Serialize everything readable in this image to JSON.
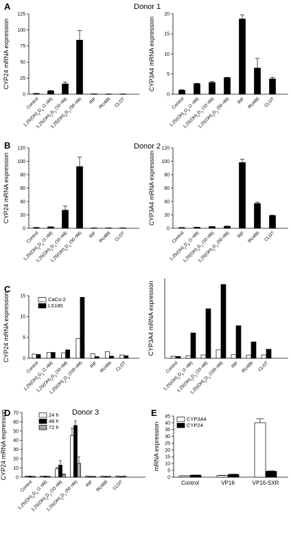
{
  "figure": {
    "panel_labels": [
      "A",
      "B",
      "C",
      "D",
      "E"
    ],
    "donor_labels": [
      "Donor 1",
      "Donor 2",
      "Donor 3"
    ]
  },
  "colors": {
    "black": "#000000",
    "white": "#ffffff",
    "gray": "#a6a6a6"
  },
  "chart_data": [
    {
      "id": "A-left",
      "type": "bar",
      "panel": "A",
      "categories": [
        "Control",
        "1,25(OH)2D3 (1 nM)",
        "1,25(OH)2D3 (10 nM)",
        "1,25(OH)2D3 (50 nM)",
        "RIF",
        "RU486",
        "CLOT"
      ],
      "series": [
        {
          "values": [
            1,
            5,
            16,
            84,
            0.5,
            0.3,
            0.3
          ],
          "errors": [
            0.3,
            0.8,
            3,
            15,
            0.1,
            0.1,
            0.1
          ],
          "color": "black"
        }
      ],
      "ylabel": "CYP24 mRNA expression",
      "ylim": [
        0,
        125
      ],
      "yticks": [
        0,
        25,
        50,
        75,
        100,
        125
      ]
    },
    {
      "id": "A-right",
      "type": "bar",
      "panel": "A",
      "categories": [
        "Control",
        "1,25(OH)2D3 (1 nM)",
        "1,25(OH)2D3 (10 nM)",
        "1,25(OH)2D3 (50 nM)",
        "RIF",
        "RU486",
        "CLOT"
      ],
      "series": [
        {
          "values": [
            1,
            2.6,
            2.9,
            4.1,
            18.7,
            6.5,
            3.8
          ],
          "errors": [
            0.1,
            0.1,
            0.3,
            0.1,
            1.0,
            2.4,
            0.4
          ],
          "color": "black"
        }
      ],
      "ylabel": "CYP3A4 mRNA expression",
      "ylim": [
        0,
        20
      ],
      "yticks": [
        0,
        5,
        10,
        15,
        20
      ]
    },
    {
      "id": "B-left",
      "type": "bar",
      "panel": "B",
      "categories": [
        "Control",
        "1,25(OH)2D3 (1 nM)",
        "1,25(OH)2D3 (10 nM)",
        "1,25(OH)2D3 (50 nM)",
        "RIF",
        "RU486",
        "CLOT"
      ],
      "series": [
        {
          "values": [
            1,
            2,
            27,
            92,
            0.5,
            0.5,
            0.5
          ],
          "errors": [
            0.3,
            0.3,
            6,
            14,
            0.1,
            0.1,
            0.1
          ],
          "color": "black"
        }
      ],
      "ylabel": "CYP24 mRNA expression",
      "ylim": [
        0,
        120
      ],
      "yticks": [
        0,
        20,
        40,
        60,
        80,
        100,
        120
      ]
    },
    {
      "id": "B-right",
      "type": "bar",
      "panel": "B",
      "categories": [
        "Control",
        "1,25(OH)2D3 (1 nM)",
        "1,25(OH)2D3 (10 nM)",
        "1,25(OH)2D3 (50 nM)",
        "RIF",
        "RU486",
        "CLOT"
      ],
      "series": [
        {
          "values": [
            1,
            1.5,
            2.5,
            3,
            98,
            37,
            19
          ],
          "errors": [
            0.2,
            0.2,
            0.3,
            0.3,
            5,
            2,
            0.5
          ],
          "color": "black"
        }
      ],
      "ylabel": "CYP3A4 mRNA expression",
      "ylim": [
        0,
        120
      ],
      "yticks": [
        0,
        20,
        40,
        60,
        80,
        100,
        120
      ]
    },
    {
      "id": "C-left",
      "type": "bar",
      "panel": "C",
      "categories": [
        "Control",
        "1,25(OH)2D3 (1 nM)",
        "1,25(OH)2D3 (10 nM)",
        "1,25(OH)2D3 (100 nM)",
        "RIF",
        "RU486",
        "CLOT"
      ],
      "series": [
        {
          "name": "CaCo-2",
          "values": [
            1,
            1.4,
            1.3,
            4.7,
            1.1,
            1.6,
            0.8
          ],
          "color": "white"
        },
        {
          "name": "LS180",
          "values": [
            0.9,
            1.4,
            2,
            14.6,
            0.4,
            0.5,
            0.6
          ],
          "color": "black"
        }
      ],
      "ylabel": "CYP24 mRNA expression",
      "ylim": [
        0,
        15
      ],
      "yticks": [
        0,
        5,
        10,
        15
      ],
      "legend": "top-left"
    },
    {
      "id": "C-right",
      "type": "bar",
      "panel": "C",
      "categories": [
        "Control",
        "1,25(OH)2D3 (1 nM)",
        "1,25(OH)2D3 (10 nM)",
        "1,25(OH)2D3 (100 nM)",
        "RIF",
        "RU486",
        "CLOT"
      ],
      "series": [
        {
          "values": [
            1,
            1.2,
            1.7,
            4.2,
            1.8,
            1.5,
            1.7
          ],
          "color": "white"
        },
        {
          "values": [
            0.9,
            12.7,
            24.8,
            37,
            16.3,
            8.2,
            4.5
          ],
          "color": "black"
        }
      ],
      "ylabel": "CYP3A4 mRNA expression",
      "ylim": [
        0,
        40
      ],
      "yticks": []
    },
    {
      "id": "D",
      "type": "bar",
      "panel": "D",
      "categories": [
        "Control",
        "1,25(OH)2D3 (1 nM)",
        "1,25(OH)2D3 (10 nM)",
        "1,25(OH)2D3 (50 nM)",
        "RIF",
        "RU486",
        "CLOT"
      ],
      "series": [
        {
          "name": "24 h",
          "values": [
            1,
            1,
            9,
            45,
            1,
            1,
            1
          ],
          "errors": [
            0.2,
            0.2,
            1.5,
            8,
            0.2,
            0.2,
            0.2
          ],
          "color": "white"
        },
        {
          "name": "48 h",
          "values": [
            1,
            1,
            13,
            56,
            0.7,
            0.7,
            0.7
          ],
          "errors": [
            0.2,
            0.2,
            5,
            5,
            0.2,
            0.2,
            0.2
          ],
          "color": "black"
        },
        {
          "name": "72 h",
          "values": [
            0.8,
            0.8,
            3,
            15,
            0.8,
            0.8,
            1
          ],
          "errors": [
            0.2,
            0.2,
            0.5,
            7,
            0.2,
            0.2,
            0.2
          ],
          "color": "gray"
        }
      ],
      "ylabel": "CYP24 mRNA expression",
      "ylim": [
        0,
        70
      ],
      "yticks": [
        0,
        10,
        20,
        30,
        40,
        50,
        60,
        70
      ],
      "legend": "top-left"
    },
    {
      "id": "E",
      "type": "bar",
      "panel": "E",
      "categories": [
        "Control",
        "VP16",
        "VP16-SXR"
      ],
      "series": [
        {
          "name": "CYP3A4",
          "values": [
            1,
            1.2,
            40
          ],
          "errors": [
            0.1,
            0.2,
            3
          ],
          "color": "white"
        },
        {
          "name": "CYP24",
          "values": [
            1.5,
            2,
            4.3
          ],
          "errors": [
            0.1,
            0.2,
            0.3
          ],
          "color": "black"
        }
      ],
      "ylabel": "mRNA expression",
      "ylim": [
        0,
        45
      ],
      "yticks": [
        0,
        5,
        10,
        15,
        20,
        25,
        30,
        35,
        40,
        45
      ],
      "legend": "top-left"
    }
  ]
}
